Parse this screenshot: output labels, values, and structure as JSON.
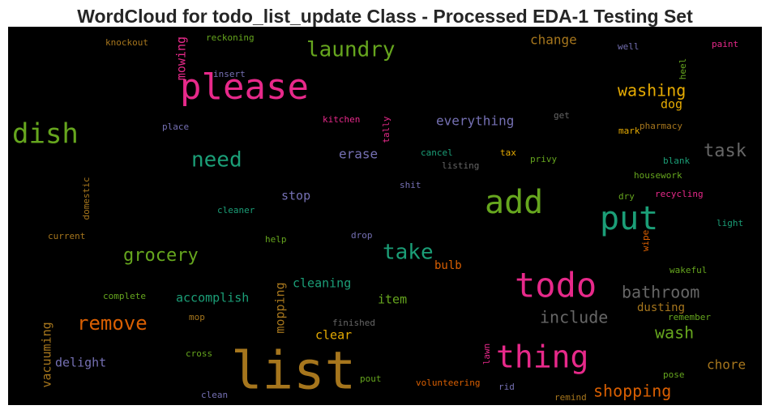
{
  "title": "WordCloud for todo_list_update Class - Processed EDA-1 Testing Set",
  "words": [
    {
      "text": "please",
      "color": "#e7298a"
    },
    {
      "text": "list",
      "color": "#a6761d"
    },
    {
      "text": "todo",
      "color": "#e7298a"
    },
    {
      "text": "add",
      "color": "#66a61e"
    },
    {
      "text": "put",
      "color": "#1b9e77"
    },
    {
      "text": "thing",
      "color": "#e7298a"
    },
    {
      "text": "dish",
      "color": "#66a61e"
    },
    {
      "text": "laundry",
      "color": "#66a61e"
    },
    {
      "text": "need",
      "color": "#1b9e77"
    },
    {
      "text": "take",
      "color": "#1b9e77"
    },
    {
      "text": "grocery",
      "color": "#66a61e"
    },
    {
      "text": "remove",
      "color": "#d95f02"
    },
    {
      "text": "washing",
      "color": "#e6ab02"
    },
    {
      "text": "task",
      "color": "#666666"
    },
    {
      "text": "bathroom",
      "color": "#666666"
    },
    {
      "text": "include",
      "color": "#666666"
    },
    {
      "text": "shopping",
      "color": "#d95f02"
    },
    {
      "text": "wash",
      "color": "#66a61e"
    },
    {
      "text": "chore",
      "color": "#a6761d"
    },
    {
      "text": "change",
      "color": "#a6761d"
    },
    {
      "text": "dog",
      "color": "#e6ab02"
    },
    {
      "text": "everything",
      "color": "#7570b3"
    },
    {
      "text": "erase",
      "color": "#7570b3"
    },
    {
      "text": "stop",
      "color": "#7570b3"
    },
    {
      "text": "cleaning",
      "color": "#1b9e77"
    },
    {
      "text": "accomplish",
      "color": "#1b9e77"
    },
    {
      "text": "item",
      "color": "#66a61e"
    },
    {
      "text": "bulb",
      "color": "#d95f02"
    },
    {
      "text": "clear",
      "color": "#e6ab02"
    },
    {
      "text": "dusting",
      "color": "#a6761d"
    },
    {
      "text": "delight",
      "color": "#7570b3"
    },
    {
      "text": "mowing",
      "color": "#e7298a"
    },
    {
      "text": "mopping",
      "color": "#a6761d"
    },
    {
      "text": "vacuuming",
      "color": "#a6761d"
    },
    {
      "text": "domestic",
      "color": "#a6761d"
    },
    {
      "text": "tally",
      "color": "#e7298a"
    },
    {
      "text": "heel",
      "color": "#66a61e"
    },
    {
      "text": "wipe",
      "color": "#d95f02"
    },
    {
      "text": "lawn",
      "color": "#e7298a"
    },
    {
      "text": "knockout",
      "color": "#a6761d"
    },
    {
      "text": "reckoning",
      "color": "#66a61e"
    },
    {
      "text": "insert",
      "color": "#7570b3"
    },
    {
      "text": "well",
      "color": "#7570b3"
    },
    {
      "text": "paint",
      "color": "#e7298a"
    },
    {
      "text": "place",
      "color": "#7570b3"
    },
    {
      "text": "kitchen",
      "color": "#e7298a"
    },
    {
      "text": "get",
      "color": "#666666"
    },
    {
      "text": "mark",
      "color": "#e6ab02"
    },
    {
      "text": "pharmacy",
      "color": "#a6761d"
    },
    {
      "text": "cancel",
      "color": "#1b9e77"
    },
    {
      "text": "tax",
      "color": "#e6ab02"
    },
    {
      "text": "listing",
      "color": "#666666"
    },
    {
      "text": "privy",
      "color": "#66a61e"
    },
    {
      "text": "blank",
      "color": "#1b9e77"
    },
    {
      "text": "housework",
      "color": "#66a61e"
    },
    {
      "text": "shit",
      "color": "#7570b3"
    },
    {
      "text": "dry",
      "color": "#66a61e"
    },
    {
      "text": "recycling",
      "color": "#e7298a"
    },
    {
      "text": "cleaner",
      "color": "#1b9e77"
    },
    {
      "text": "current",
      "color": "#a6761d"
    },
    {
      "text": "help",
      "color": "#66a61e"
    },
    {
      "text": "drop",
      "color": "#7570b3"
    },
    {
      "text": "light",
      "color": "#1b9e77"
    },
    {
      "text": "wakeful",
      "color": "#66a61e"
    },
    {
      "text": "complete",
      "color": "#66a61e"
    },
    {
      "text": "mop",
      "color": "#a6761d"
    },
    {
      "text": "finished",
      "color": "#666666"
    },
    {
      "text": "remember",
      "color": "#66a61e"
    },
    {
      "text": "cross",
      "color": "#66a61e"
    },
    {
      "text": "pout",
      "color": "#66a61e"
    },
    {
      "text": "pose",
      "color": "#66a61e"
    },
    {
      "text": "volunteering",
      "color": "#d95f02"
    },
    {
      "text": "rid",
      "color": "#7570b3"
    },
    {
      "text": "clean",
      "color": "#7570b3"
    },
    {
      "text": "remind",
      "color": "#a6761d"
    }
  ]
}
